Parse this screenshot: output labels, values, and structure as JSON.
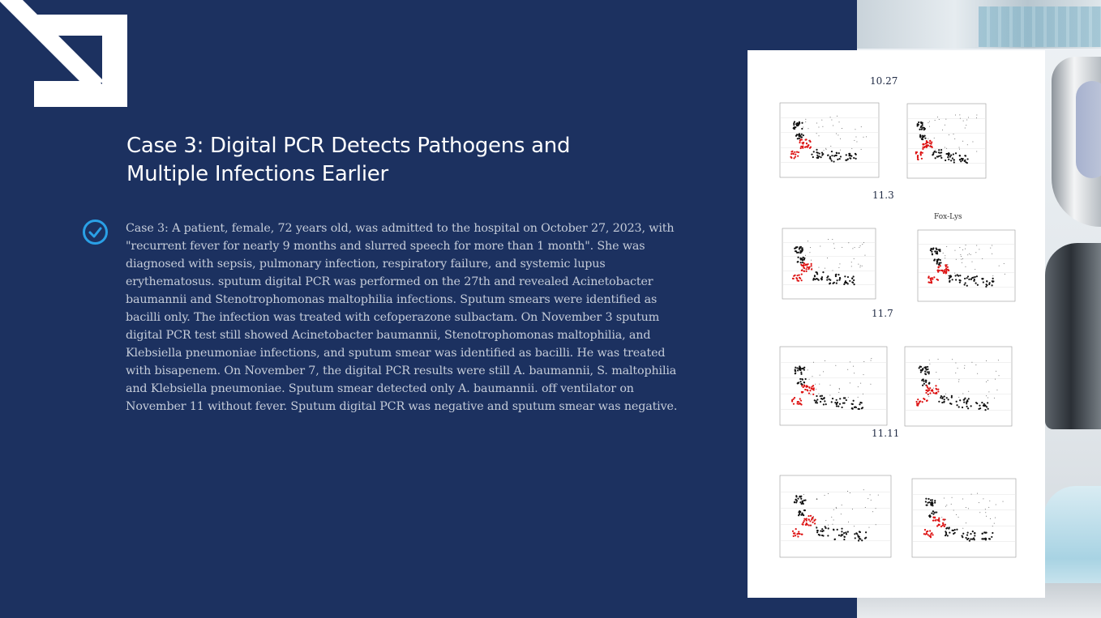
{
  "slide": {
    "title": "Case 3: Digital PCR Detects Pathogens and Multiple Infections Earlier",
    "title_line1": "Case 3: Digital PCR Detects Pathogens and",
    "title_line2": "Multiple Infections Earlier",
    "body_lines": [
      "Case 3: A patient, female, 72 years old, was admitted to the hospital on October 27, 2023, with",
      "\"recurrent fever for nearly 9 months and slurred speech for more than 1 month\". She was",
      "diagnosed with sepsis, pulmonary infection, respiratory failure, and systemic lupus",
      "erythematosus. sputum digital PCR was performed on the 27th and revealed Acinetobacter",
      "baumannii and Stenotrophomonas maltophilia infections. Sputum smears were identiﬁed as",
      "bacilli only. The infection was treated with cefoperazone sulbactam. On November 3 sputum",
      "digital PCR test still showed Acinetobacter baumannii, Stenotrophomonas maltophilia, and",
      "Klebsiella pneumoniae infections, and sputum smear was identiﬁed as bacilli. He was treated",
      "with bisapenem. On November 7, the digital PCR results were still A. baumannii, S. maltophilia",
      "and Klebsiella pneumoniae. Sputum smear detected only A. baumannii. off ventilator on",
      "November 11 without fever. Sputum digital PCR was negative and sputum smear was negative."
    ]
  },
  "panel": {
    "dates": [
      "10.27",
      "11.3",
      "11.7",
      "11.11"
    ],
    "plot_extra_label": "Fox-Lys"
  },
  "colors": {
    "background": "#1c3160",
    "accent": "#2aa0e6",
    "title": "#ffffff",
    "body": "#c5ccd9"
  },
  "icons": {
    "arrow": "arrow-down-right-icon",
    "check": "check-circle-icon"
  }
}
